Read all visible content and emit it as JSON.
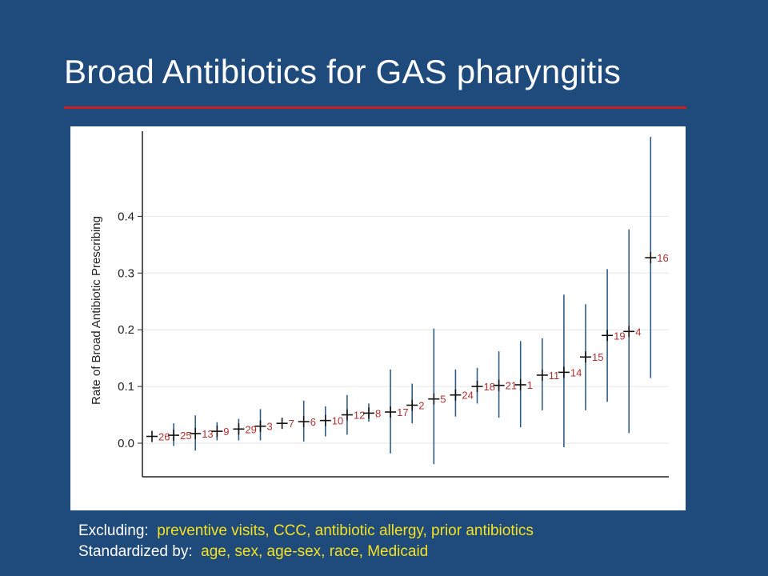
{
  "slide": {
    "title": "Broad Antibiotics for GAS pharyngitis"
  },
  "footer": {
    "excluding_label": "Excluding:",
    "excluding_value": "preventive visits, CCC, antibiotic allergy, prior antibiotics",
    "standardized_label": "Standardized by:",
    "standardized_value": "age, sex, age-sex, race, Medicaid"
  },
  "colors": {
    "background": "#1f4a7c",
    "title_rule": "#c81e1e",
    "footer_highlight": "#f5e21f",
    "ci_line": "#2f5d8a",
    "point_label": "#b03030"
  },
  "chart_data": {
    "type": "scatter",
    "title": "",
    "xlabel": "",
    "ylabel": "Rate of Broad Antibiotic Prescribing",
    "ylim": [
      -0.06,
      0.54
    ],
    "yticks": [
      "0.0",
      "0.1",
      "0.2",
      "0.3",
      "0.4"
    ],
    "grid": true,
    "series": [
      {
        "labels": [
          "26",
          "25",
          "13",
          "9",
          "29",
          "3",
          "7",
          "6",
          "10",
          "12",
          "8",
          "17",
          "2",
          "5",
          "24",
          "18",
          "21",
          "1",
          "11",
          "14",
          "15",
          "19",
          "4",
          "16"
        ],
        "values": [
          0.012,
          0.014,
          0.017,
          0.021,
          0.025,
          0.03,
          0.035,
          0.038,
          0.04,
          0.05,
          0.053,
          0.055,
          0.067,
          0.078,
          0.085,
          0.1,
          0.102,
          0.103,
          0.12,
          0.125,
          0.152,
          0.19,
          0.197,
          0.327
        ],
        "lower": [
          0.012,
          -0.005,
          -0.013,
          0.005,
          0.005,
          0.005,
          0.035,
          0.003,
          0.012,
          0.015,
          0.038,
          -0.018,
          0.035,
          -0.037,
          0.047,
          0.07,
          0.045,
          0.028,
          0.058,
          -0.007,
          0.058,
          0.073,
          0.018,
          0.115
        ],
        "upper": [
          0.012,
          0.035,
          0.049,
          0.037,
          0.043,
          0.06,
          0.035,
          0.075,
          0.065,
          0.085,
          0.07,
          0.13,
          0.105,
          0.202,
          0.13,
          0.133,
          0.162,
          0.18,
          0.185,
          0.262,
          0.245,
          0.307,
          0.377,
          0.54
        ]
      }
    ]
  }
}
